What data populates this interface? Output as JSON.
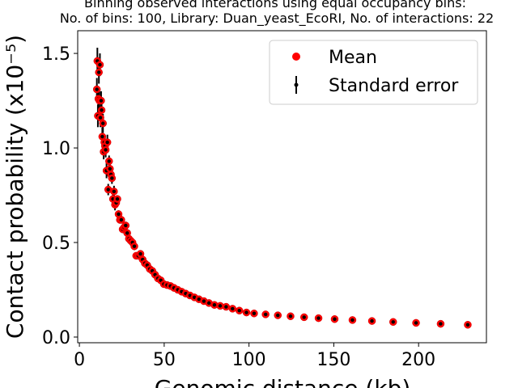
{
  "chart_data": {
    "type": "scatter",
    "title": "Binning observed interactions using equal occupancy bins:",
    "subtitle": "No. of bins: 100, Library: Duan_yeast_EcoRI, No. of interactions: 22",
    "xlabel": "Genomic distance (kb)",
    "ylabel": "Contact probability (x10⁻⁵)",
    "xlim": [
      -1,
      240
    ],
    "ylim": [
      -0.03,
      1.62
    ],
    "xticks": [
      0,
      50,
      100,
      150,
      200
    ],
    "yticks": [
      0.0,
      0.5,
      1.0,
      1.5
    ],
    "xtick_labels": [
      "0",
      "50",
      "100",
      "150",
      "200"
    ],
    "ytick_labels": [
      "0.0",
      "0.5",
      "1.0",
      "1.5"
    ],
    "grid": false,
    "legend": {
      "placement": "top-right",
      "entries": [
        "Mean",
        "Standard error"
      ]
    },
    "colors": {
      "mean": "#ff0000",
      "mean_edge": "#cc0000",
      "error": "#000000"
    },
    "series": [
      {
        "name": "Mean",
        "x": [
          10.3,
          10.6,
          10.9,
          11.2,
          11.5,
          11.8,
          12.1,
          12.4,
          12.8,
          13.1,
          13.5,
          13.9,
          14.3,
          14.7,
          15.1,
          15.5,
          16.0,
          16.5,
          17.0,
          17.5,
          18.0,
          18.6,
          19.2,
          19.8,
          20.4,
          21.0,
          21.7,
          22.4,
          23.1,
          23.9,
          24.7,
          25.5,
          26.4,
          27.3,
          28.2,
          29.2,
          30.2,
          31.3,
          32.4,
          33.5,
          34.7,
          36.0,
          37.3,
          38.6,
          40.0,
          41.5,
          43.0,
          44.6,
          46.3,
          48.0,
          49.8,
          51.7,
          53.7,
          55.8,
          58.0,
          60.3,
          62.7,
          65.2,
          67.8,
          70.5,
          73.4,
          76.4,
          79.6,
          83.0,
          86.5,
          90.3,
          94.3,
          98.5,
          103.0,
          109.8,
          117.0,
          124.5,
          132.5,
          141.0,
          150.5,
          161.0,
          172.5,
          185.0,
          198.5,
          213.0,
          229.0
        ],
        "y": [
          1.31,
          1.46,
          1.17,
          1.26,
          1.4,
          1.25,
          1.44,
          1.16,
          1.25,
          1.2,
          1.06,
          1.13,
          0.98,
          1.03,
          1.01,
          0.99,
          0.88,
          1.03,
          0.78,
          0.93,
          0.89,
          0.86,
          0.84,
          0.73,
          0.77,
          0.7,
          0.71,
          0.73,
          0.65,
          0.62,
          0.62,
          0.57,
          0.58,
          0.59,
          0.55,
          0.52,
          0.51,
          0.5,
          0.48,
          0.43,
          0.43,
          0.44,
          0.41,
          0.39,
          0.38,
          0.36,
          0.35,
          0.33,
          0.31,
          0.3,
          0.28,
          0.275,
          0.27,
          0.26,
          0.25,
          0.24,
          0.23,
          0.22,
          0.21,
          0.2,
          0.19,
          0.18,
          0.17,
          0.165,
          0.16,
          0.15,
          0.14,
          0.13,
          0.125,
          0.12,
          0.115,
          0.11,
          0.105,
          0.1,
          0.095,
          0.09,
          0.085,
          0.08,
          0.075,
          0.07,
          0.065
        ],
        "err": [
          0.06,
          0.07,
          0.06,
          0.06,
          0.06,
          0.05,
          0.06,
          0.05,
          0.05,
          0.05,
          0.05,
          0.05,
          0.04,
          0.04,
          0.04,
          0.04,
          0.04,
          0.04,
          0.03,
          0.03,
          0.03,
          0.03,
          0.03,
          0.03,
          0.03,
          0.03,
          0.02,
          0.02,
          0.02,
          0.02,
          0.02,
          0.02,
          0.02,
          0.02,
          0.02,
          0.02,
          0.02,
          0.02,
          0.02,
          0.015,
          0.015,
          0.015,
          0.015,
          0.015,
          0.015,
          0.01,
          0.01,
          0.01,
          0.01,
          0.01,
          0.01,
          0.01,
          0.01,
          0.01,
          0.01,
          0.01,
          0.01,
          0.01,
          0.01,
          0.01,
          0.01,
          0.01,
          0.01,
          0.01,
          0.01,
          0.01,
          0.01,
          0.01,
          0.01,
          0.01,
          0.01,
          0.01,
          0.01,
          0.01,
          0.01,
          0.01,
          0.01,
          0.01,
          0.01,
          0.01,
          0.01
        ]
      }
    ]
  }
}
